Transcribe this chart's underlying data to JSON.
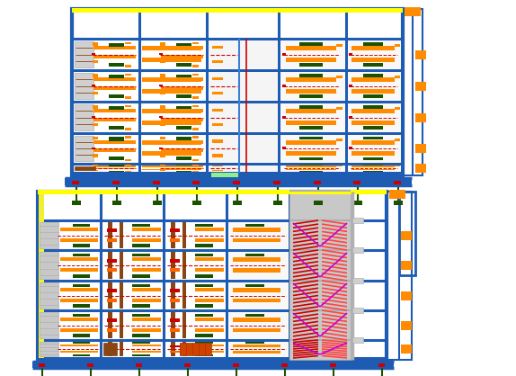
{
  "bg": "#ffffff",
  "blue": "#1e5cb3",
  "blue2": "#3a7fd5",
  "orange": "#ff8c00",
  "dark_green": "#1a5200",
  "red": "#cc0000",
  "red2": "#ff3300",
  "brown": "#8B4513",
  "brown2": "#a05010",
  "gray": "#b0b0b0",
  "gray2": "#d0d0d0",
  "yellow": "#ffff00",
  "yellow2": "#e8e800",
  "magenta": "#cc00cc",
  "silver": "#c8c8c8",
  "tan": "#c8a870",
  "khaki": "#c8b870",
  "olive": "#808000"
}
